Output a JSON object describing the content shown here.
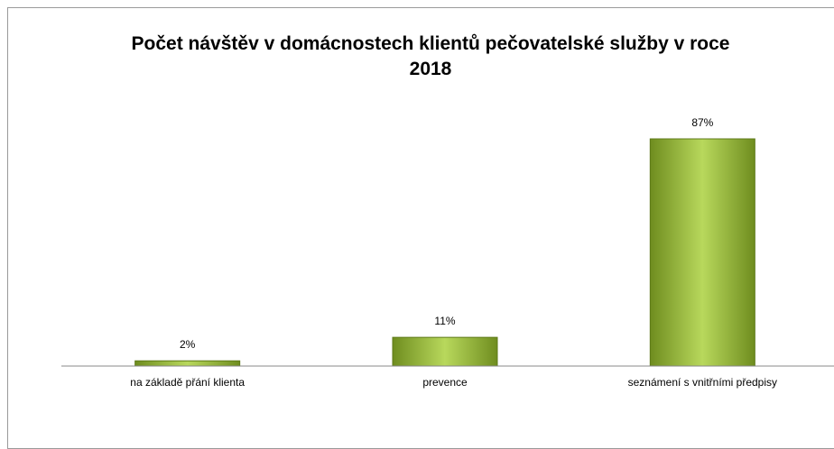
{
  "chart_data": {
    "type": "bar",
    "title": "Počet návštěv v domácnostech klientů pečovatelské služby v roce 2018",
    "categories": [
      "na základě přání klienta",
      "prevence",
      "seznámení s vnitřními předpisy"
    ],
    "values": [
      2,
      11,
      87
    ],
    "value_labels": [
      "2%",
      "11%",
      "87%"
    ],
    "color": "#9bbb3b"
  }
}
